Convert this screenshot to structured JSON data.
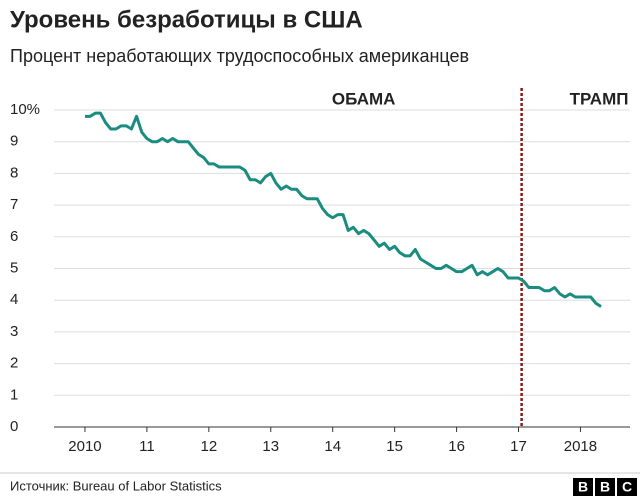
{
  "chart_data": {
    "type": "line",
    "title": "Уровень безработицы в США",
    "subtitle": "Процент неработающих трудоспособных американцев",
    "source": "Источник: Bureau of Labor Statistics",
    "logo": [
      "B",
      "B",
      "C"
    ],
    "annotations": [
      {
        "text": "ОБАМА",
        "x": 2014.5
      },
      {
        "text": "ТРАМП",
        "x": 2018.3
      }
    ],
    "divider_x": 2017.05,
    "divider_color": "#8b1a1a",
    "x": [
      2010,
      2010.083,
      2010.167,
      2010.25,
      2010.333,
      2010.417,
      2010.5,
      2010.583,
      2010.667,
      2010.75,
      2010.833,
      2010.917,
      2011,
      2011.083,
      2011.167,
      2011.25,
      2011.333,
      2011.417,
      2011.5,
      2011.583,
      2011.667,
      2011.75,
      2011.833,
      2011.917,
      2012,
      2012.083,
      2012.167,
      2012.25,
      2012.333,
      2012.417,
      2012.5,
      2012.583,
      2012.667,
      2012.75,
      2012.833,
      2012.917,
      2013,
      2013.083,
      2013.167,
      2013.25,
      2013.333,
      2013.417,
      2013.5,
      2013.583,
      2013.667,
      2013.75,
      2013.833,
      2013.917,
      2014,
      2014.083,
      2014.167,
      2014.25,
      2014.333,
      2014.417,
      2014.5,
      2014.583,
      2014.667,
      2014.75,
      2014.833,
      2014.917,
      2015,
      2015.083,
      2015.167,
      2015.25,
      2015.333,
      2015.417,
      2015.5,
      2015.583,
      2015.667,
      2015.75,
      2015.833,
      2015.917,
      2016,
      2016.083,
      2016.167,
      2016.25,
      2016.333,
      2016.417,
      2016.5,
      2016.583,
      2016.667,
      2016.75,
      2016.833,
      2016.917,
      2017,
      2017.083,
      2017.167,
      2017.25,
      2017.333,
      2017.417,
      2017.5,
      2017.583,
      2017.667,
      2017.75,
      2017.833,
      2017.917,
      2018,
      2018.083,
      2018.167,
      2018.25,
      2018.333
    ],
    "series": [
      {
        "color": "#1a8c80",
        "values": [
          9.8,
          9.8,
          9.9,
          9.9,
          9.6,
          9.4,
          9.4,
          9.5,
          9.5,
          9.4,
          9.8,
          9.3,
          9.1,
          9.0,
          9.0,
          9.1,
          9.0,
          9.1,
          9.0,
          9.0,
          9.0,
          8.8,
          8.6,
          8.5,
          8.3,
          8.3,
          8.2,
          8.2,
          8.2,
          8.2,
          8.2,
          8.1,
          7.8,
          7.8,
          7.7,
          7.9,
          8.0,
          7.7,
          7.5,
          7.6,
          7.5,
          7.5,
          7.3,
          7.2,
          7.2,
          7.2,
          6.9,
          6.7,
          6.6,
          6.7,
          6.7,
          6.2,
          6.3,
          6.1,
          6.2,
          6.1,
          5.9,
          5.7,
          5.8,
          5.6,
          5.7,
          5.5,
          5.4,
          5.4,
          5.6,
          5.3,
          5.2,
          5.1,
          5.0,
          5.0,
          5.1,
          5.0,
          4.9,
          4.9,
          5.0,
          5.1,
          4.8,
          4.9,
          4.8,
          4.9,
          5.0,
          4.9,
          4.7,
          4.7,
          4.7,
          4.6,
          4.4,
          4.4,
          4.4,
          4.3,
          4.3,
          4.4,
          4.2,
          4.1,
          4.2,
          4.1,
          4.1,
          4.1,
          4.1,
          3.9,
          3.8
        ]
      }
    ],
    "xlim": [
      2009.5,
      2018.8
    ],
    "xticks": [
      {
        "value": 2010,
        "label": "2010"
      },
      {
        "value": 2011,
        "label": "11"
      },
      {
        "value": 2012,
        "label": "12"
      },
      {
        "value": 2013,
        "label": "13"
      },
      {
        "value": 2014,
        "label": "14"
      },
      {
        "value": 2015,
        "label": "15"
      },
      {
        "value": 2016,
        "label": "16"
      },
      {
        "value": 2017,
        "label": "17"
      },
      {
        "value": 2018,
        "label": "2018"
      }
    ],
    "ylim": [
      0,
      10
    ],
    "yticks": [
      0,
      1,
      2,
      3,
      4,
      5,
      6,
      7,
      8,
      9,
      {
        "value": 10,
        "label": "10%"
      }
    ],
    "grid": true
  }
}
